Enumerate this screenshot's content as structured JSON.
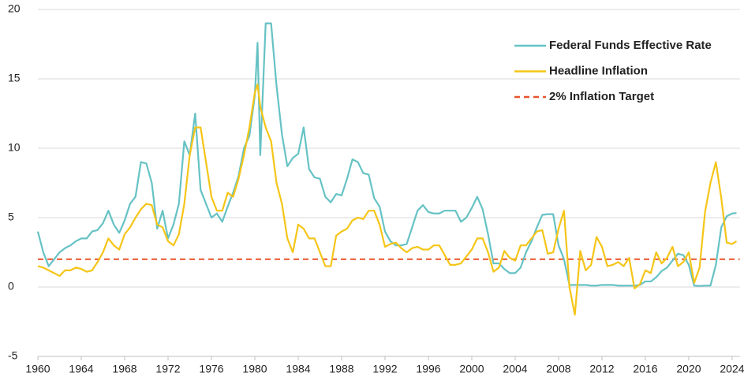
{
  "chart_data": {
    "type": "line",
    "x": [
      1960,
      1960.5,
      1961,
      1961.5,
      1962,
      1962.5,
      1963,
      1963.5,
      1964,
      1964.5,
      1965,
      1965.5,
      1966,
      1966.5,
      1967,
      1967.5,
      1968,
      1968.5,
      1969,
      1969.5,
      1970,
      1970.5,
      1971,
      1971.5,
      1972,
      1972.5,
      1973,
      1973.5,
      1974,
      1974.5,
      1975,
      1975.5,
      1976,
      1976.5,
      1977,
      1977.5,
      1978,
      1978.5,
      1979,
      1979.5,
      1980,
      1980.25,
      1980.5,
      1981,
      1981.5,
      1982,
      1982.5,
      1983,
      1983.5,
      1984,
      1984.5,
      1985,
      1985.5,
      1986,
      1986.5,
      1987,
      1987.5,
      1988,
      1988.5,
      1989,
      1989.5,
      1990,
      1990.5,
      1991,
      1991.5,
      1992,
      1992.5,
      1993,
      1993.5,
      1994,
      1994.5,
      1995,
      1995.5,
      1996,
      1996.5,
      1997,
      1997.5,
      1998,
      1998.5,
      1999,
      1999.5,
      2000,
      2000.5,
      2001,
      2001.5,
      2002,
      2002.5,
      2003,
      2003.5,
      2004,
      2004.5,
      2005,
      2005.5,
      2006,
      2006.5,
      2007,
      2007.5,
      2008,
      2008.5,
      2009,
      2009.5,
      2010,
      2010.5,
      2011,
      2011.5,
      2012,
      2012.5,
      2013,
      2013.5,
      2014,
      2014.5,
      2015,
      2015.5,
      2016,
      2016.5,
      2017,
      2017.5,
      2018,
      2018.5,
      2019,
      2019.5,
      2020,
      2020.5,
      2021,
      2021.5,
      2022,
      2022.5,
      2023,
      2023.5,
      2024,
      2024.4
    ],
    "series": [
      {
        "name": "Federal Funds Effective Rate",
        "color": "#66c2c4",
        "values": [
          4.0,
          2.5,
          1.5,
          2.0,
          2.5,
          2.8,
          3.0,
          3.3,
          3.5,
          3.5,
          4.0,
          4.1,
          4.6,
          5.5,
          4.5,
          3.9,
          4.8,
          6.0,
          6.5,
          9.0,
          8.9,
          7.5,
          4.2,
          5.5,
          3.5,
          4.5,
          6.0,
          10.5,
          9.5,
          12.5,
          7.0,
          6.0,
          5.0,
          5.3,
          4.7,
          5.8,
          6.8,
          8.0,
          10.0,
          10.9,
          13.8,
          17.6,
          9.5,
          19.0,
          19.0,
          14.5,
          11.0,
          8.7,
          9.3,
          9.6,
          11.5,
          8.5,
          7.9,
          7.8,
          6.5,
          6.1,
          6.7,
          6.6,
          7.8,
          9.2,
          9.0,
          8.2,
          8.1,
          6.4,
          5.8,
          4.0,
          3.3,
          3.0,
          3.0,
          3.1,
          4.3,
          5.5,
          5.9,
          5.4,
          5.3,
          5.3,
          5.5,
          5.5,
          5.5,
          4.7,
          5.0,
          5.7,
          6.5,
          5.6,
          3.8,
          1.7,
          1.7,
          1.3,
          1.0,
          1.0,
          1.4,
          2.5,
          3.3,
          4.3,
          5.2,
          5.25,
          5.25,
          3.0,
          2.0,
          0.15,
          0.15,
          0.15,
          0.15,
          0.1,
          0.1,
          0.15,
          0.15,
          0.15,
          0.1,
          0.1,
          0.1,
          0.1,
          0.15,
          0.4,
          0.4,
          0.7,
          1.15,
          1.4,
          1.9,
          2.4,
          2.3,
          1.6,
          0.1,
          0.08,
          0.1,
          0.1,
          1.6,
          4.3,
          5.1,
          5.3,
          5.33
        ]
      },
      {
        "name": "Headline Inflation",
        "color": "#f5c518",
        "values": [
          1.5,
          1.4,
          1.2,
          1.0,
          0.8,
          1.2,
          1.2,
          1.4,
          1.3,
          1.1,
          1.2,
          1.8,
          2.5,
          3.5,
          3.0,
          2.7,
          3.8,
          4.3,
          5.0,
          5.6,
          6.0,
          5.9,
          4.5,
          4.3,
          3.3,
          3.0,
          3.8,
          6.0,
          9.5,
          11.5,
          11.5,
          9.0,
          6.5,
          5.5,
          5.5,
          6.8,
          6.5,
          7.8,
          9.5,
          11.5,
          14.0,
          14.6,
          13.0,
          11.5,
          10.5,
          7.5,
          6.0,
          3.5,
          2.5,
          4.5,
          4.2,
          3.5,
          3.5,
          2.5,
          1.5,
          1.5,
          3.7,
          4.0,
          4.2,
          4.8,
          5.0,
          4.9,
          5.5,
          5.5,
          4.5,
          2.9,
          3.1,
          3.2,
          2.8,
          2.5,
          2.8,
          2.9,
          2.7,
          2.7,
          3.0,
          3.0,
          2.3,
          1.6,
          1.6,
          1.7,
          2.2,
          2.7,
          3.5,
          3.5,
          2.5,
          1.1,
          1.4,
          2.6,
          2.1,
          1.9,
          3.0,
          3.0,
          3.5,
          4.0,
          4.1,
          2.4,
          2.5,
          4.2,
          5.5,
          0.0,
          -2.0,
          2.6,
          1.2,
          1.6,
          3.6,
          2.9,
          1.5,
          1.6,
          1.8,
          1.5,
          2.1,
          -0.1,
          0.2,
          1.2,
          1.0,
          2.5,
          1.7,
          2.1,
          2.9,
          1.5,
          1.8,
          2.5,
          0.3,
          1.4,
          5.4,
          7.5,
          9.0,
          6.4,
          3.2,
          3.1,
          3.3
        ]
      }
    ],
    "reference_line": {
      "name": "2% Inflation Target",
      "value": 2,
      "color": "#e8552b",
      "style": "dashed"
    },
    "xlim": [
      1960,
      2024.7
    ],
    "xticks": [
      1960,
      1964,
      1968,
      1972,
      1976,
      1980,
      1984,
      1988,
      1992,
      1996,
      2000,
      2004,
      2008,
      2012,
      2016,
      2020,
      2024
    ],
    "ylim": [
      -5,
      20
    ],
    "yticks": [
      -5,
      0,
      5,
      10,
      15,
      20
    ],
    "grid": true,
    "legend": "upper right"
  }
}
